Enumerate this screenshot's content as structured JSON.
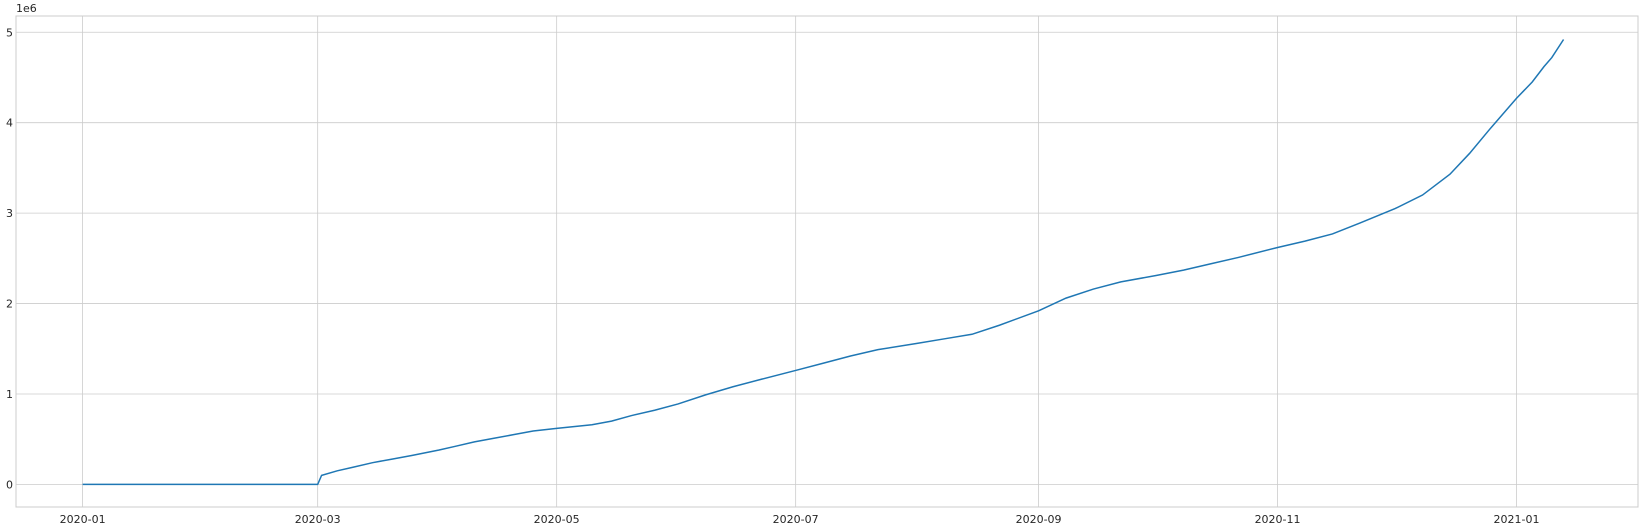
{
  "chart_data": {
    "type": "line",
    "title": "",
    "xlabel": "",
    "ylabel": "",
    "y_offset_label": "1e6",
    "grid": true,
    "x_tick_labels": [
      "2020-01",
      "2020-03",
      "2020-05",
      "2020-07",
      "2020-09",
      "2020-11",
      "2021-01"
    ],
    "x_tick_dates": [
      "2020-01-01",
      "2020-03-01",
      "2020-05-01",
      "2020-07-01",
      "2020-09-01",
      "2020-11-01",
      "2021-01-01"
    ],
    "xlim": [
      "2019-12-15",
      "2021-02-01"
    ],
    "y_ticks": [
      0,
      1,
      2,
      3,
      4,
      5
    ],
    "y_tick_labels": [
      "0",
      "1",
      "2",
      "3",
      "4",
      "5"
    ],
    "ylim": [
      -0.25,
      5.18
    ],
    "line_color": "#1f77b4",
    "series": [
      {
        "x": [
          "2020-01-01",
          "2020-03-01",
          "2020-03-02",
          "2020-03-06",
          "2020-03-10",
          "2020-03-15",
          "2020-03-20",
          "2020-03-25",
          "2020-04-01",
          "2020-04-05",
          "2020-04-10",
          "2020-04-15",
          "2020-04-20",
          "2020-04-25",
          "2020-05-01",
          "2020-05-10",
          "2020-05-15",
          "2020-05-20",
          "2020-05-26",
          "2020-06-01",
          "2020-06-08",
          "2020-06-15",
          "2020-06-22",
          "2020-07-01",
          "2020-07-08",
          "2020-07-15",
          "2020-07-22",
          "2020-08-01",
          "2020-08-08",
          "2020-08-15",
          "2020-08-22",
          "2020-09-01",
          "2020-09-08",
          "2020-09-15",
          "2020-09-22",
          "2020-10-01",
          "2020-10-08",
          "2020-10-15",
          "2020-10-22",
          "2020-11-01",
          "2020-11-08",
          "2020-11-15",
          "2020-11-22",
          "2020-12-01",
          "2020-12-08",
          "2020-12-15",
          "2020-12-20",
          "2020-12-25",
          "2021-01-01",
          "2021-01-05",
          "2021-01-08",
          "2021-01-10",
          "2021-01-13"
        ],
        "y": [
          0,
          0,
          0.1,
          0.15,
          0.19,
          0.24,
          0.28,
          0.32,
          0.38,
          0.42,
          0.47,
          0.51,
          0.55,
          0.59,
          0.62,
          0.66,
          0.7,
          0.76,
          0.82,
          0.89,
          0.99,
          1.08,
          1.16,
          1.26,
          1.34,
          1.42,
          1.49,
          1.56,
          1.61,
          1.66,
          1.76,
          1.92,
          2.06,
          2.16,
          2.24,
          2.31,
          2.37,
          2.44,
          2.51,
          2.62,
          2.69,
          2.77,
          2.89,
          3.05,
          3.2,
          3.43,
          3.66,
          3.92,
          4.27,
          4.45,
          4.62,
          4.72,
          4.92
        ]
      }
    ]
  }
}
